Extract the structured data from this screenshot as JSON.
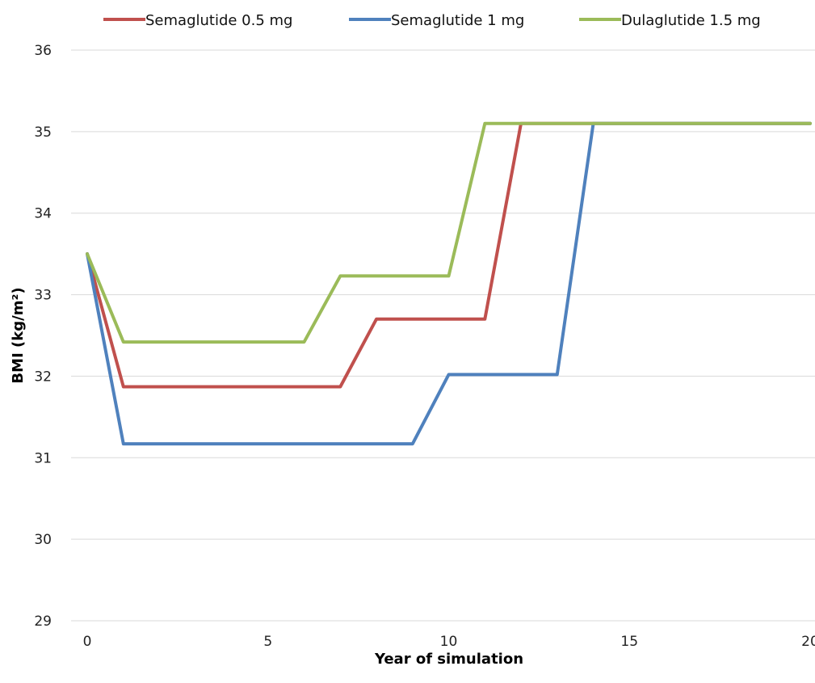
{
  "chart_data": {
    "type": "line",
    "xlabel": "Year of simulation",
    "ylabel": "BMI (kg/m²)",
    "xlim": [
      0,
      20
    ],
    "ylim": [
      29,
      36
    ],
    "x_ticks": [
      0,
      5,
      10,
      15,
      20
    ],
    "y_ticks": [
      29,
      30,
      31,
      32,
      33,
      34,
      35,
      36
    ],
    "grid": "horizontal",
    "legend_position": "top",
    "series": [
      {
        "name": "Semaglutide 0.5 mg",
        "color": "#C0504D",
        "x": [
          0,
          1,
          7,
          8,
          11,
          12,
          20
        ],
        "y": [
          33.5,
          31.87,
          31.87,
          32.7,
          32.7,
          35.1,
          35.1
        ]
      },
      {
        "name": "Semaglutide 1 mg",
        "color": "#4F81BD",
        "x": [
          0,
          1,
          9,
          10,
          13,
          14,
          20
        ],
        "y": [
          33.5,
          31.17,
          31.17,
          32.02,
          32.02,
          35.1,
          35.1
        ]
      },
      {
        "name": "Dulaglutide 1.5 mg",
        "color": "#9BBB59",
        "x": [
          0,
          1,
          6,
          7,
          10,
          11,
          20
        ],
        "y": [
          33.5,
          32.42,
          32.42,
          33.23,
          33.23,
          35.1,
          35.1
        ]
      }
    ]
  }
}
